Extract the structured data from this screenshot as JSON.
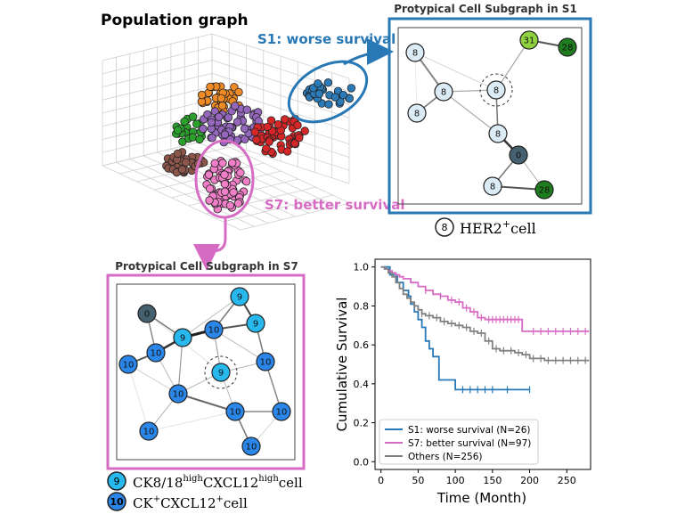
{
  "population": {
    "title": "Population graph",
    "s1_label": "S1: worse survival",
    "s7_label": "S7: better survival"
  },
  "subgraph_s1": {
    "title": "Protypical Cell Subgraph in S1",
    "nodes": [
      "8",
      "8",
      "8",
      "8",
      "31",
      "28",
      "8",
      "0",
      "8",
      "28"
    ],
    "legend": {
      "badge": "8",
      "text_main": "HER2",
      "text_sup": "+",
      "text_tail": "cell"
    }
  },
  "subgraph_s7": {
    "title": "Protypical Cell Subgraph in S7",
    "nodes": [
      "9",
      "0",
      "9",
      "10",
      "9",
      "10",
      "10",
      "9",
      "10",
      "10",
      "10",
      "10",
      "10",
      "10"
    ],
    "legend": [
      {
        "badge": "9",
        "parts": [
          "CK8/18",
          "high",
          "CXCL12",
          "high",
          "cell"
        ]
      },
      {
        "badge": "10",
        "parts": [
          "CK",
          "+",
          "CXCL12",
          "+",
          "cell"
        ]
      }
    ]
  },
  "colors": {
    "s1_blue": "#2878b5",
    "s7_pink": "#d66bc4",
    "others_gray": "#808080",
    "her2_node": "#dcecf6",
    "ck818_node": "#27b9ee",
    "ck_node": "#2a86e8",
    "dark_node": "#45606f",
    "green_light": "#8fd13f",
    "green_dark": "#1e7d1e"
  },
  "chart_data": {
    "type": "line",
    "xlabel": "Time (Month)",
    "ylabel": "Cumulative Survival",
    "xlim": [
      -8,
      282
    ],
    "ylim": [
      -0.04,
      1.04
    ],
    "xticks": [
      "0",
      "50",
      "100",
      "150",
      "200",
      "250"
    ],
    "yticks": [
      "0.0",
      "0.2",
      "0.4",
      "0.6",
      "0.8",
      "1.0"
    ],
    "legend_position": "lower-left",
    "grid": false,
    "series": [
      {
        "name": "S1: worse survival (N=26)",
        "color": "#2878b5",
        "x": [
          0,
          5,
          12,
          20,
          22,
          27,
          30,
          33,
          37,
          40,
          45,
          50,
          55,
          60,
          65,
          70,
          78,
          100,
          200
        ],
        "y": [
          1.0,
          1.0,
          0.96,
          0.96,
          0.92,
          0.92,
          0.88,
          0.88,
          0.85,
          0.81,
          0.77,
          0.73,
          0.69,
          0.62,
          0.58,
          0.54,
          0.42,
          0.37,
          0.37
        ],
        "censor_x": [
          110,
          120,
          130,
          140,
          150,
          170,
          200
        ]
      },
      {
        "name": "S7: better survival (N=97)",
        "color": "#d66bc4",
        "x": [
          0,
          5,
          10,
          15,
          20,
          25,
          30,
          40,
          50,
          60,
          70,
          80,
          90,
          100,
          110,
          120,
          130,
          140,
          150,
          160,
          170,
          180,
          190,
          200,
          210,
          220,
          240,
          260,
          280
        ],
        "y": [
          1.0,
          0.99,
          0.98,
          0.97,
          0.96,
          0.95,
          0.94,
          0.92,
          0.9,
          0.88,
          0.86,
          0.85,
          0.83,
          0.82,
          0.79,
          0.77,
          0.74,
          0.73,
          0.73,
          0.73,
          0.73,
          0.73,
          0.67,
          0.67,
          0.67,
          0.67,
          0.67,
          0.67,
          0.67
        ],
        "censor_x": [
          60,
          80,
          95,
          105,
          115,
          125,
          135,
          145,
          150,
          155,
          160,
          165,
          170,
          175,
          180,
          185,
          205,
          215,
          225,
          235,
          245,
          255,
          265,
          275
        ]
      },
      {
        "name": "Others (N=256)",
        "color": "#808080",
        "x": [
          0,
          5,
          10,
          15,
          20,
          25,
          30,
          35,
          40,
          45,
          50,
          55,
          60,
          70,
          80,
          90,
          100,
          110,
          120,
          130,
          140,
          150,
          160,
          170,
          180,
          190,
          200,
          210,
          220,
          230,
          240,
          250,
          260,
          270,
          280
        ],
        "y": [
          1.0,
          0.99,
          0.97,
          0.95,
          0.92,
          0.89,
          0.86,
          0.84,
          0.82,
          0.8,
          0.78,
          0.76,
          0.75,
          0.74,
          0.72,
          0.71,
          0.7,
          0.69,
          0.67,
          0.66,
          0.62,
          0.58,
          0.57,
          0.57,
          0.56,
          0.55,
          0.53,
          0.53,
          0.52,
          0.52,
          0.52,
          0.52,
          0.52,
          0.52,
          0.52
        ],
        "censor_x": [
          45,
          55,
          65,
          75,
          85,
          95,
          105,
          115,
          125,
          135,
          145,
          155,
          165,
          175,
          185,
          195,
          205,
          215,
          225,
          235,
          245,
          255,
          265,
          275
        ]
      }
    ]
  }
}
